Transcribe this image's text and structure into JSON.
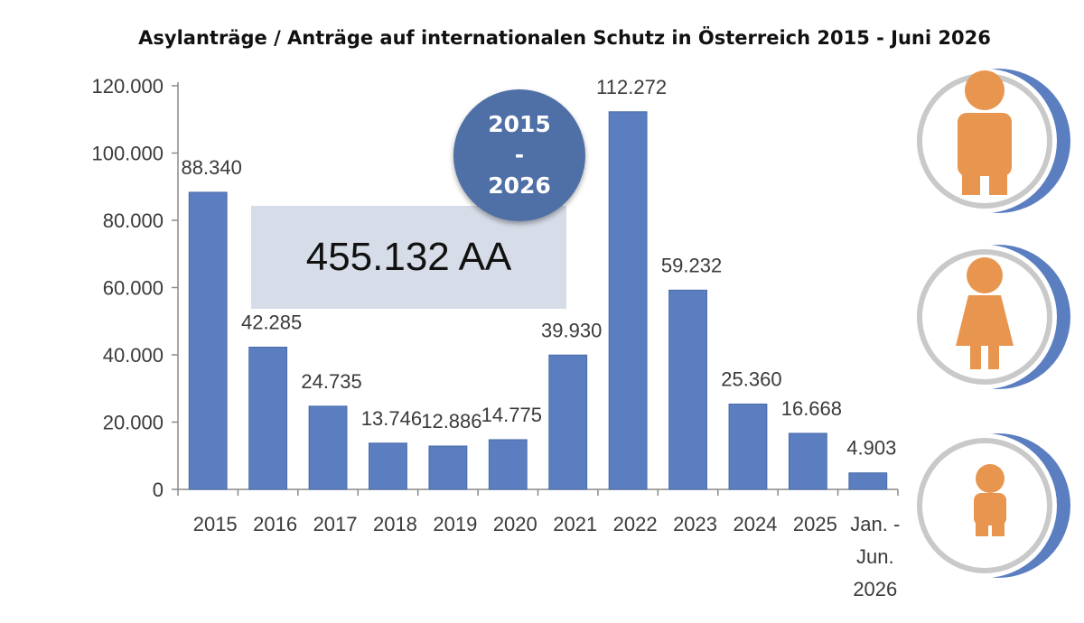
{
  "title": "Asylanträge / Anträge auf internationalen Schutz in Österreich 2015 - Juni 2026",
  "total_box": {
    "text": "455.132 AA"
  },
  "period_badge": {
    "line1": "2015",
    "line2": "-",
    "line3": "2026"
  },
  "colors": {
    "bar": "#5b7ec1",
    "bar_edge": "#4a6aa8",
    "badge": "#4f6fa7",
    "total_box": "#d6dce8",
    "person_icon": "#e8964f",
    "side_wedge": "#5b7ec1"
  },
  "side_icons": [
    "man-icon",
    "woman-icon",
    "child-icon"
  ],
  "chart_data": {
    "type": "bar",
    "categories": [
      "2015",
      "2016",
      "2017",
      "2018",
      "2019",
      "2020",
      "2021",
      "2022",
      "2023",
      "2024",
      "2025",
      "Jan. - Jun. 2026"
    ],
    "category_lines": [
      [
        "2015"
      ],
      [
        "2016"
      ],
      [
        "2017"
      ],
      [
        "2018"
      ],
      [
        "2019"
      ],
      [
        "2020"
      ],
      [
        "2021"
      ],
      [
        "2022"
      ],
      [
        "2023"
      ],
      [
        "2024"
      ],
      [
        "2025"
      ],
      [
        "Jan. -",
        "Jun.",
        "2026"
      ]
    ],
    "values": [
      88340,
      42285,
      24735,
      13746,
      12886,
      14775,
      39930,
      112272,
      59232,
      25360,
      16668,
      4903
    ],
    "value_labels": [
      "88.340",
      "42.285",
      "24.735",
      "13.746",
      "12.886",
      "14.775",
      "39.930",
      "112.272",
      "59.232",
      "25.360",
      "16.668",
      "4.903"
    ],
    "yticks": [
      0,
      20000,
      40000,
      60000,
      80000,
      100000,
      120000
    ],
    "ytick_labels": [
      "0",
      "20.000",
      "40.000",
      "60.000",
      "80.000",
      "100.000",
      "120.000"
    ],
    "ylim": [
      0,
      120000
    ],
    "grid": false,
    "legend": "none"
  }
}
